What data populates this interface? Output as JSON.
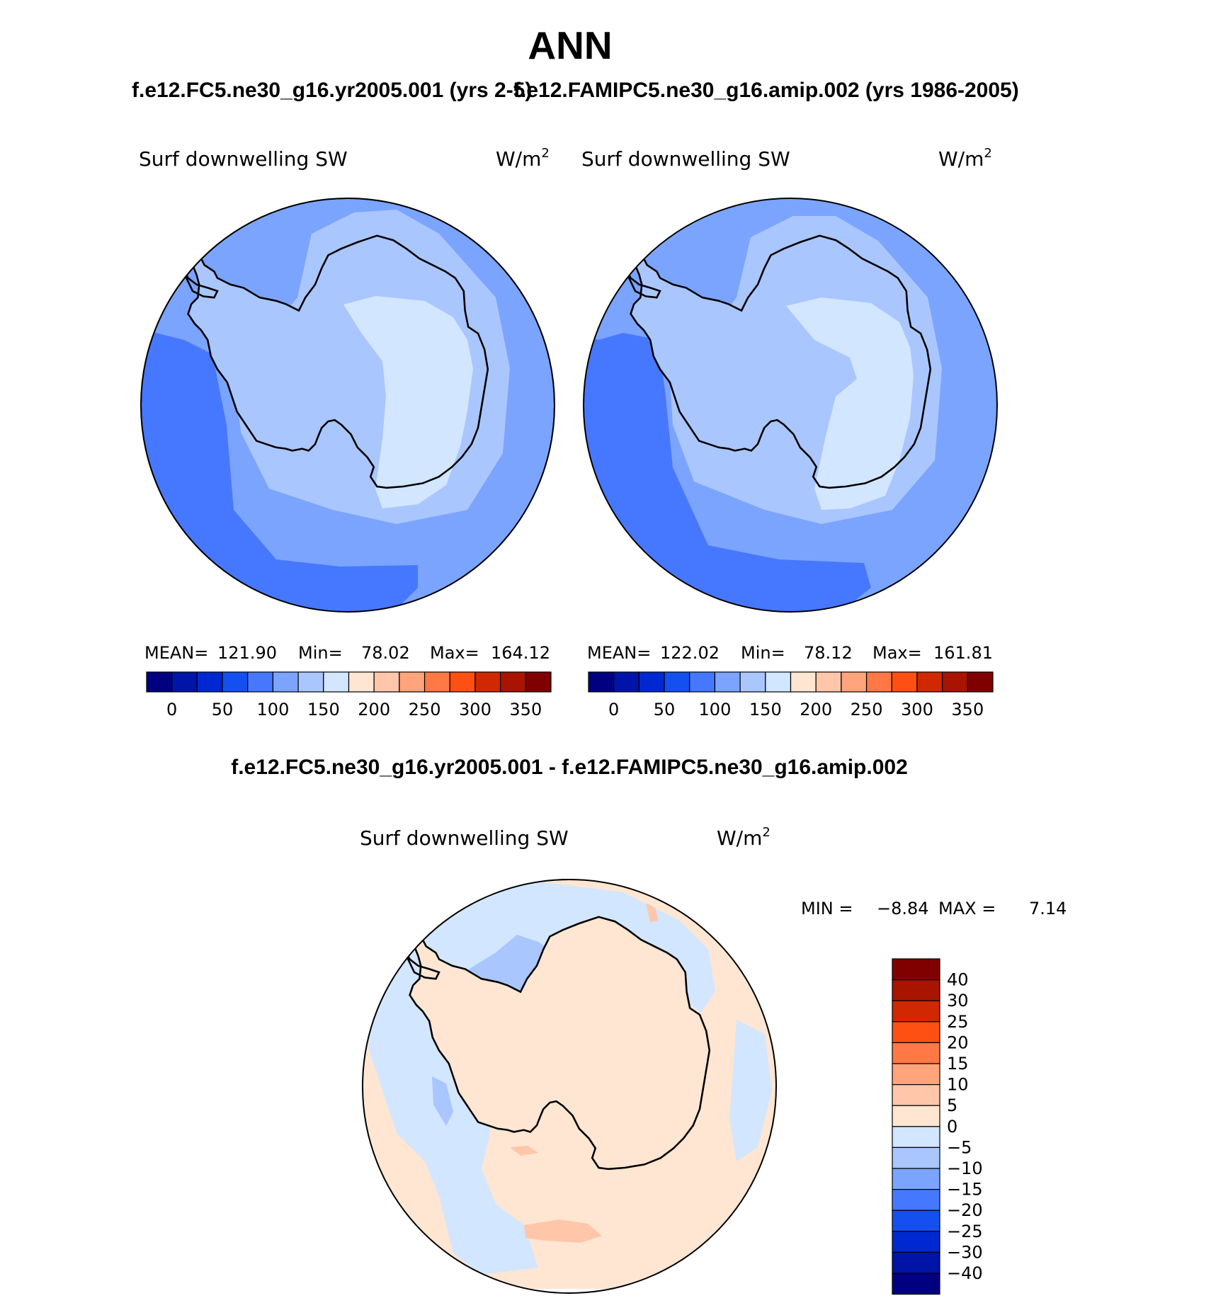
{
  "title": "ANN",
  "panel_titles": {
    "left": "f.e12.FC5.ne30_g16.yr2005.001 (yrs 2-5)",
    "right": "f.e12.FAMIPC5.ne30_g16.amip.002 (yrs 1986-2005)",
    "diff": "f.e12.FC5.ne30_g16.yr2005.001 - f.e12.FAMIPC5.ne30_g16.amip.002"
  },
  "colors": {
    "abs_palette": [
      "#000080",
      "#0014a8",
      "#0028d0",
      "#1450f0",
      "#4678ff",
      "#7ba4ff",
      "#aac6ff",
      "#d2e6ff",
      "#ffe6d2",
      "#ffc6aa",
      "#ffa47b",
      "#ff7846",
      "#ff5014",
      "#d02800",
      "#a81400",
      "#800000"
    ],
    "diff_palette": [
      "#000080",
      "#0014a8",
      "#0028d0",
      "#1450f0",
      "#4678ff",
      "#7ba4ff",
      "#aac6ff",
      "#d2e6ff",
      "#ffe6d2",
      "#ffc6aa",
      "#ffa47b",
      "#ff7846",
      "#ff5014",
      "#d02800",
      "#a81400",
      "#800000"
    ]
  },
  "chart_data": [
    {
      "type": "heatmap",
      "projection": "south-polar-stereographic",
      "variable": "Surf downwelling SW",
      "units": "W/m",
      "units_superscript": "2",
      "stats": {
        "mean_label": "MEAN=",
        "mean": "121.90",
        "min_label": "Min=",
        "min": "78.02",
        "max_label": "Max=",
        "max": "164.12"
      },
      "colorbar_ticks": [
        "0",
        "50",
        "100",
        "150",
        "200",
        "250",
        "300",
        "350"
      ],
      "regions": {
        "outer": 100,
        "deep_band": 90,
        "mid_ocean": 115,
        "coast_band": 135,
        "west_antarctica": 140,
        "east_antarctica": 155
      }
    },
    {
      "type": "heatmap",
      "projection": "south-polar-stereographic",
      "variable": "Surf downwelling SW",
      "units": "W/m",
      "units_superscript": "2",
      "stats": {
        "mean_label": "MEAN=",
        "mean": "122.02",
        "min_label": "Min=",
        "min": "78.12",
        "max_label": "Max=",
        "max": "161.81"
      },
      "colorbar_ticks": [
        "0",
        "50",
        "100",
        "150",
        "200",
        "250",
        "300",
        "350"
      ],
      "regions": {
        "outer": 100,
        "deep_band": 90,
        "mid_ocean": 115,
        "coast_band": 135,
        "west_antarctica": 140,
        "east_antarctica": 155
      }
    },
    {
      "type": "heatmap",
      "projection": "south-polar-stereographic",
      "variable": "Surf downwelling SW",
      "units": "W/m",
      "units_superscript": "2",
      "stats": {
        "min_label": "MIN =",
        "min": "−8.84",
        "max_label": "MAX =",
        "max": "7.14"
      },
      "colorbar_ticks": [
        "40",
        "30",
        "25",
        "20",
        "15",
        "10",
        "5",
        "0",
        "−5",
        "−10",
        "−15",
        "−20",
        "−25",
        "−30",
        "−40"
      ],
      "regions": {
        "background": 2,
        "ocean_patches": -3,
        "darker_patches": -7,
        "warm_spots": 7
      }
    }
  ]
}
